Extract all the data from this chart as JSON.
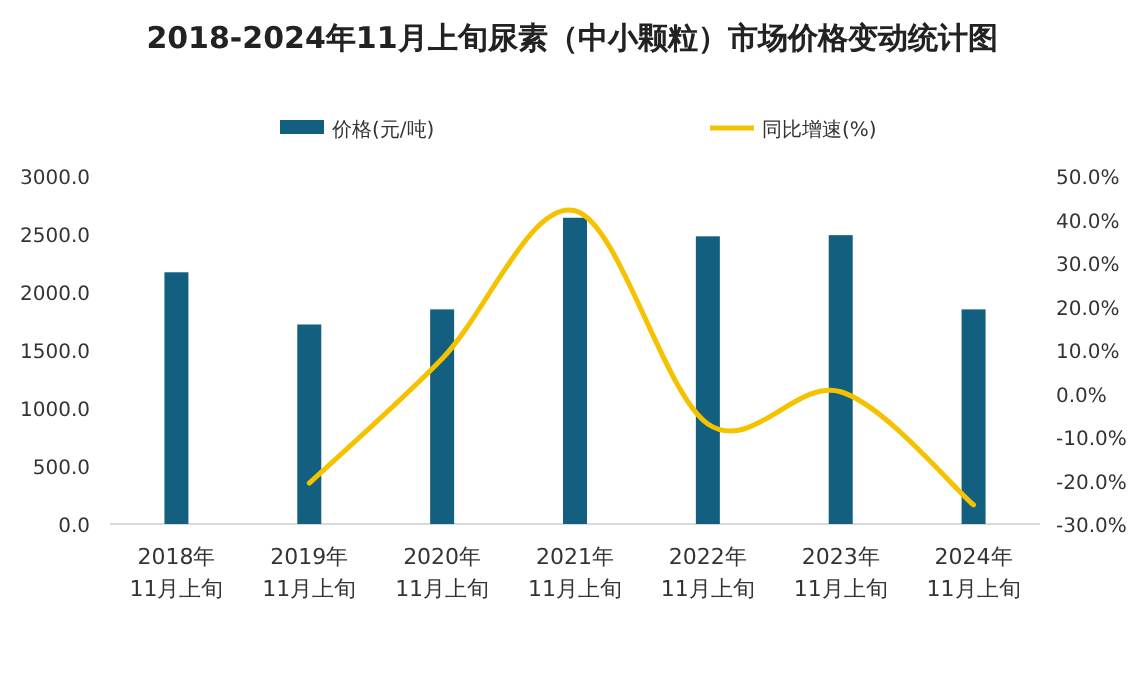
{
  "chart_data": {
    "type": "bar",
    "title": "2018-2024年11月上旬尿素（中小颗粒）市场价格变动统计图",
    "categories": [
      "2018年\n11月上旬",
      "2019年\n11月上旬",
      "2020年\n11月上旬",
      "2021年\n11月上旬",
      "2022年\n11月上旬",
      "2023年\n11月上旬",
      "2024年\n11月上旬"
    ],
    "series": [
      {
        "name": "价格(元/吨)",
        "color": "#135f7f",
        "values": [
          2170,
          1720,
          1850,
          2640,
          2480,
          2490,
          1850
        ]
      },
      {
        "name": "同比增速(%)",
        "type": "line",
        "axis": "y2",
        "color": "#f5c200",
        "values": [
          null,
          -20.6,
          8,
          42,
          -7,
          0.4,
          -25.6
        ]
      }
    ],
    "ylim": [
      0,
      3000
    ],
    "yticks": [
      {
        "value": 0,
        "label": "0.0"
      },
      {
        "value": 500,
        "label": "500.0"
      },
      {
        "value": 1000,
        "label": "1000.0"
      },
      {
        "value": 1500,
        "label": "1500.0"
      },
      {
        "value": 2000,
        "label": "2000.0"
      },
      {
        "value": 2500,
        "label": "2500.0"
      },
      {
        "value": 3000,
        "label": "3000.0"
      }
    ],
    "y2lim": [
      -30,
      50
    ],
    "y2ticks": [
      {
        "value": -30,
        "label": "-30.0%"
      },
      {
        "value": -20,
        "label": "-20.0%"
      },
      {
        "value": -10,
        "label": "-10.0%"
      },
      {
        "value": 0,
        "label": "0.0%"
      },
      {
        "value": 10,
        "label": "10.0%"
      },
      {
        "value": 20,
        "label": "20.0%"
      },
      {
        "value": 30,
        "label": "30.0%"
      },
      {
        "value": 40,
        "label": "40.0%"
      },
      {
        "value": 50,
        "label": "50.0%"
      }
    ],
    "legend": "top"
  }
}
